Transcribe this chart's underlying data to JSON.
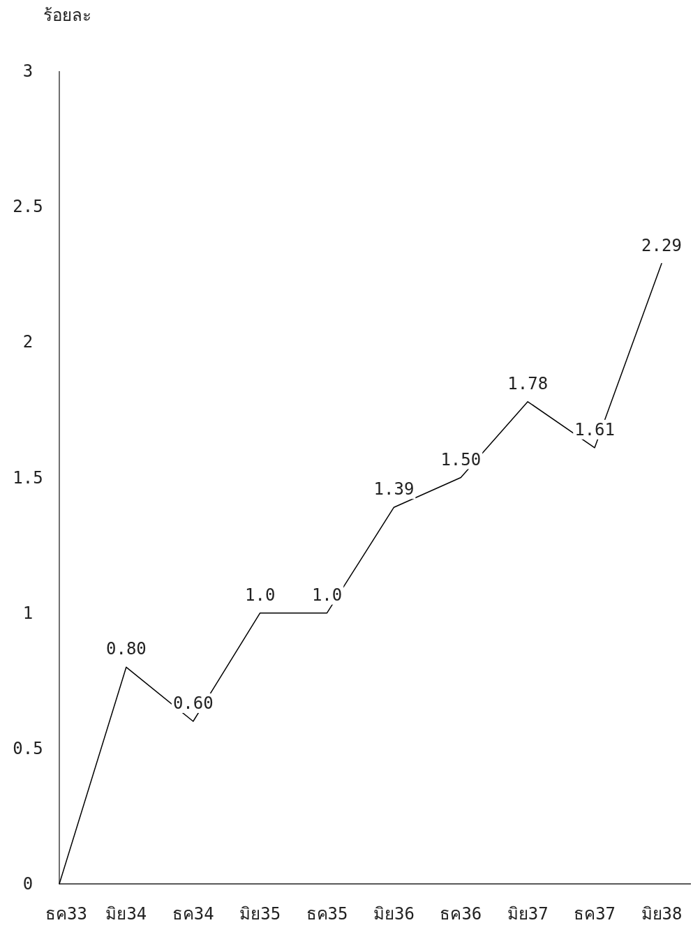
{
  "chart_data": {
    "type": "line",
    "ylabel": "ร้อยละ",
    "categories": [
      "ธค33",
      "มิย34",
      "ธค34",
      "มิย35",
      "ธค35",
      "มิย36",
      "ธค36",
      "มิย37",
      "ธค37",
      "มิย38"
    ],
    "series": [
      {
        "color": "#000000",
        "values": [
          0,
          0.8,
          0.6,
          1.0,
          1.0,
          1.39,
          1.5,
          1.78,
          1.61,
          2.29
        ],
        "value_labels": [
          null,
          "0.80",
          "0.60",
          "1.0",
          "1.0",
          "1.39",
          "1.50",
          "1.78",
          "1.61",
          "2.29"
        ]
      }
    ],
    "ylim": [
      0,
      3
    ],
    "yticks": [
      0,
      0.5,
      1,
      1.5,
      2,
      2.5,
      3
    ]
  }
}
